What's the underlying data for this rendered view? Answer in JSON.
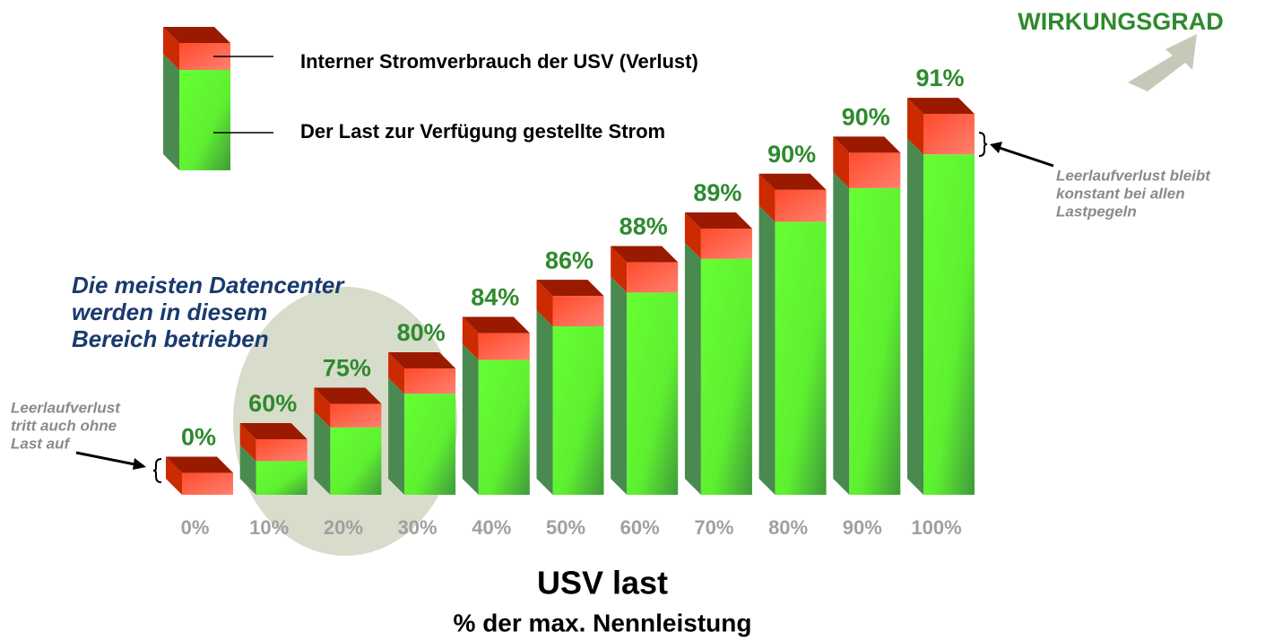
{
  "chart_data": {
    "type": "bar3d-stacked",
    "title": "WIRKUNGSGRAD",
    "x_label": "USV last",
    "x_sublabel": "% der max. Nennleistung",
    "categories": [
      "0%",
      "10%",
      "20%",
      "30%",
      "40%",
      "50%",
      "60%",
      "70%",
      "80%",
      "90%",
      "100%"
    ],
    "efficiency_labels": [
      "0%",
      "60%",
      "75%",
      "80%",
      "84%",
      "86%",
      "88%",
      "89%",
      "90%",
      "90%",
      "91%"
    ],
    "series": [
      {
        "name": "Der Last zur Verfügung gestellte Strom",
        "color": "#66ff33",
        "values": [
          0,
          10,
          20,
          30,
          40,
          50,
          60,
          70,
          81,
          91,
          101
        ]
      },
      {
        "name": "Interner Stromverbrauch der USV (Verlust)",
        "color": "#ff5a40",
        "values": [
          6.5,
          6.5,
          7,
          7.5,
          8,
          9,
          9,
          9,
          9.5,
          10.5,
          12
        ]
      }
    ],
    "annotations": {
      "region": [
        "Die meisten Datencenter",
        "werden in diesem",
        "Bereich betrieben"
      ],
      "idle_left": [
        "Leerlaufverlust",
        "tritt auch ohne",
        "Last auf"
      ],
      "idle_right": [
        "Leerlaufverlust bleibt",
        "konstant bei allen",
        "Lastpegeln"
      ]
    }
  }
}
